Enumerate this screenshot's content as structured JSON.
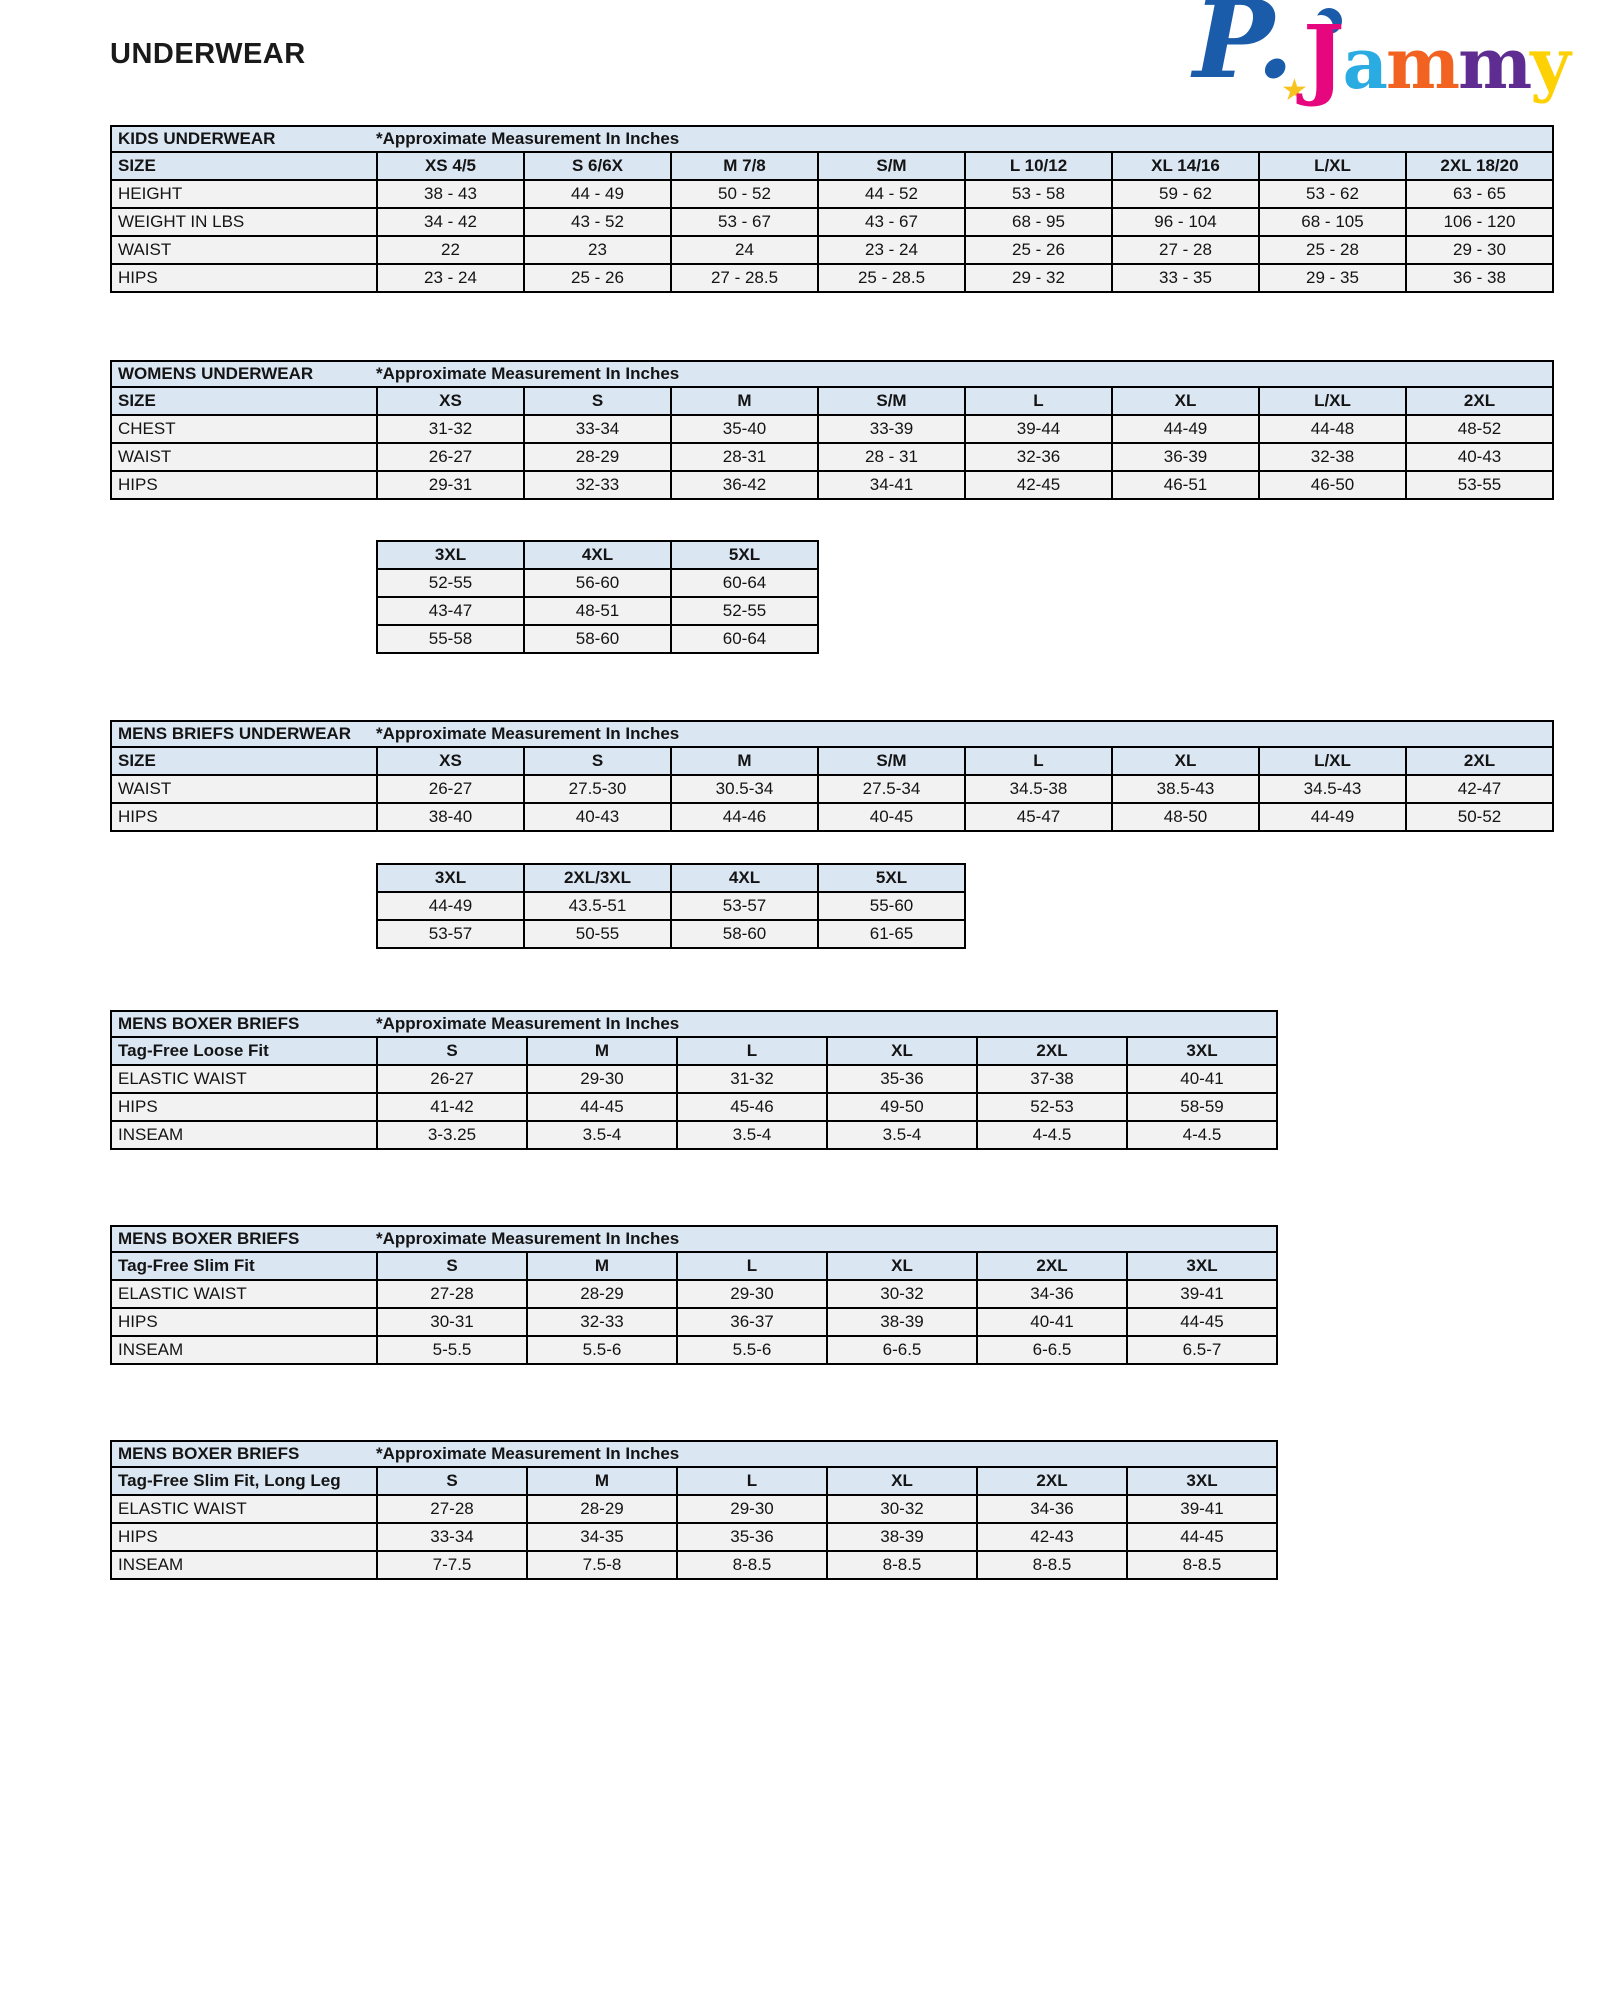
{
  "page_title": "UNDERWEAR",
  "logo": {
    "p_letter": "P.",
    "star_glyph": "★",
    "letters": [
      {
        "ch": "J",
        "color": "#e6067e"
      },
      {
        "ch": "a",
        "color": "#2aabe2"
      },
      {
        "ch": "m",
        "color": "#f26322"
      },
      {
        "ch": "m",
        "color": "#5f2d91"
      },
      {
        "ch": "y",
        "color": "#fdd104"
      }
    ],
    "p_color": "#1b5caa",
    "star_color": "#f9c31f",
    "moon_color": "#1b5caa"
  },
  "colors": {
    "table_header_bg": "#dbe6f3",
    "table_row_bg": "#f2f2f2",
    "border": "#000000"
  },
  "tables": [
    {
      "id": "kids",
      "title": "KIDS UNDERWEAR",
      "note": "*Approximate Measurement In Inches",
      "label_header": "SIZE",
      "columns": [
        "XS 4/5",
        "S 6/6X",
        "M 7/8",
        "S/M",
        "L 10/12",
        "XL 14/16",
        "L/XL",
        "2XL 18/20"
      ],
      "rows": [
        {
          "label": "HEIGHT",
          "values": [
            "38 - 43",
            "44 - 49",
            "50 - 52",
            "44 - 52",
            "53 - 58",
            "59 - 62",
            "53 - 62",
            "63 - 65"
          ]
        },
        {
          "label": "WEIGHT IN LBS",
          "values": [
            "34 - 42",
            "43 - 52",
            "53 - 67",
            "43 - 67",
            "68 - 95",
            "96 - 104",
            "68 - 105",
            "106 - 120"
          ]
        },
        {
          "label": "WAIST",
          "values": [
            "22",
            "23",
            "24",
            "23 - 24",
            "25 - 26",
            "27 - 28",
            "25 - 28",
            "29 - 30"
          ]
        },
        {
          "label": "HIPS",
          "values": [
            "23 - 24",
            "25 - 26",
            "27 - 28.5",
            "25 - 28.5",
            "29 - 32",
            "33 - 35",
            "29 - 35",
            "36 - 38"
          ]
        }
      ]
    },
    {
      "id": "womens",
      "title": "WOMENS UNDERWEAR",
      "note": "*Approximate Measurement In Inches",
      "label_header": "SIZE",
      "columns": [
        "XS",
        "S",
        "M",
        "S/M",
        "L",
        "XL",
        "L/XL",
        "2XL"
      ],
      "rows": [
        {
          "label": "CHEST",
          "values": [
            "31-32",
            "33-34",
            "35-40",
            "33-39",
            "39-44",
            "44-49",
            "44-48",
            "48-52"
          ]
        },
        {
          "label": "WAIST",
          "values": [
            "26-27",
            "28-29",
            "28-31",
            "28 - 31",
            "32-36",
            "36-39",
            "32-38",
            "40-43"
          ]
        },
        {
          "label": "HIPS",
          "values": [
            "29-31",
            "32-33",
            "36-42",
            "34-41",
            "42-45",
            "46-51",
            "46-50",
            "53-55"
          ]
        }
      ]
    },
    {
      "id": "womens-extended",
      "columns": [
        "3XL",
        "4XL",
        "5XL"
      ],
      "rows": [
        {
          "values": [
            "52-55",
            "56-60",
            "60-64"
          ]
        },
        {
          "values": [
            "43-47",
            "48-51",
            "52-55"
          ]
        },
        {
          "values": [
            "55-58",
            "58-60",
            "60-64"
          ]
        }
      ]
    },
    {
      "id": "mens-briefs",
      "title": "MENS BRIEFS UNDERWEAR",
      "note": "*Approximate Measurement In Inches",
      "label_header": "SIZE",
      "columns": [
        "XS",
        "S",
        "M",
        "S/M",
        "L",
        "XL",
        "L/XL",
        "2XL"
      ],
      "rows": [
        {
          "label": "WAIST",
          "values": [
            "26-27",
            "27.5-30",
            "30.5-34",
            "27.5-34",
            "34.5-38",
            "38.5-43",
            "34.5-43",
            "42-47"
          ]
        },
        {
          "label": "HIPS",
          "values": [
            "38-40",
            "40-43",
            "44-46",
            "40-45",
            "45-47",
            "48-50",
            "44-49",
            "50-52"
          ]
        }
      ]
    },
    {
      "id": "mens-briefs-extended",
      "columns": [
        "3XL",
        "2XL/3XL",
        "4XL",
        "5XL"
      ],
      "rows": [
        {
          "values": [
            "44-49",
            "43.5-51",
            "53-57",
            "55-60"
          ]
        },
        {
          "values": [
            "53-57",
            "50-55",
            "58-60",
            "61-65"
          ]
        }
      ]
    },
    {
      "id": "boxer-loose-fit",
      "title": "MENS BOXER BRIEFS",
      "note": "*Approximate Measurement In Inches",
      "label_header": "Tag-Free Loose Fit",
      "columns": [
        "S",
        "M",
        "L",
        "XL",
        "2XL",
        "3XL"
      ],
      "rows": [
        {
          "label": "ELASTIC WAIST",
          "values": [
            "26-27",
            "29-30",
            "31-32",
            "35-36",
            "37-38",
            "40-41"
          ]
        },
        {
          "label": "HIPS",
          "values": [
            "41-42",
            "44-45",
            "45-46",
            "49-50",
            "52-53",
            "58-59"
          ]
        },
        {
          "label": "INSEAM",
          "values": [
            "3-3.25",
            "3.5-4",
            "3.5-4",
            "3.5-4",
            "4-4.5",
            "4-4.5"
          ]
        }
      ]
    },
    {
      "id": "boxer-slim-fit",
      "title": "MENS BOXER BRIEFS",
      "note": "*Approximate Measurement In Inches",
      "label_header": "Tag-Free Slim Fit",
      "columns": [
        "S",
        "M",
        "L",
        "XL",
        "2XL",
        "3XL"
      ],
      "rows": [
        {
          "label": "ELASTIC WAIST",
          "values": [
            "27-28",
            "28-29",
            "29-30",
            "30-32",
            "34-36",
            "39-41"
          ]
        },
        {
          "label": "HIPS",
          "values": [
            "30-31",
            "32-33",
            "36-37",
            "38-39",
            "40-41",
            "44-45"
          ]
        },
        {
          "label": "INSEAM",
          "values": [
            "5-5.5",
            "5.5-6",
            "5.5-6",
            "6-6.5",
            "6-6.5",
            "6.5-7"
          ]
        }
      ]
    },
    {
      "id": "boxer-slim-fit-long-leg",
      "title": "MENS BOXER BRIEFS",
      "note": "*Approximate Measurement In Inches",
      "label_header": "Tag-Free Slim Fit, Long Leg",
      "columns": [
        "S",
        "M",
        "L",
        "XL",
        "2XL",
        "3XL"
      ],
      "rows": [
        {
          "label": "ELASTIC WAIST",
          "values": [
            "27-28",
            "28-29",
            "29-30",
            "30-32",
            "34-36",
            "39-41"
          ]
        },
        {
          "label": "HIPS",
          "values": [
            "33-34",
            "34-35",
            "35-36",
            "38-39",
            "42-43",
            "44-45"
          ]
        },
        {
          "label": "INSEAM",
          "values": [
            "7-7.5",
            "7.5-8",
            "8-8.5",
            "8-8.5",
            "8-8.5",
            "8-8.5"
          ]
        }
      ]
    }
  ]
}
